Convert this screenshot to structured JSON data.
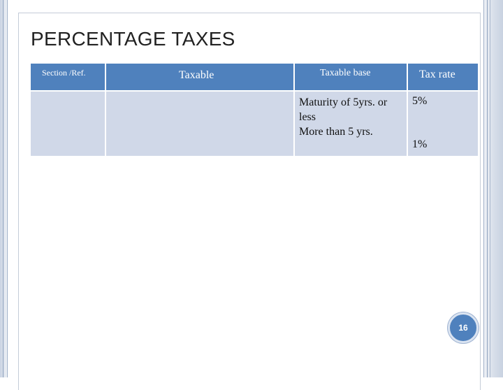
{
  "slide": {
    "title": "PERCENTAGE TAXES",
    "page_number": "16"
  },
  "table": {
    "headers": {
      "section": "Section /Ref.",
      "taxable": "Taxable",
      "taxable_base": "Taxable base",
      "tax_rate": "Tax rate"
    },
    "rows": [
      {
        "section": "",
        "taxable": "",
        "taxable_base": [
          "Maturity of 5yrs. or",
          "less",
          "More than 5 yrs."
        ],
        "tax_rate": [
          "5%",
          "1%"
        ]
      }
    ]
  },
  "colors": {
    "header_fill": "#4f81bd",
    "cell_fill": "#d0d8e8",
    "frame": "#c9d3e2"
  }
}
